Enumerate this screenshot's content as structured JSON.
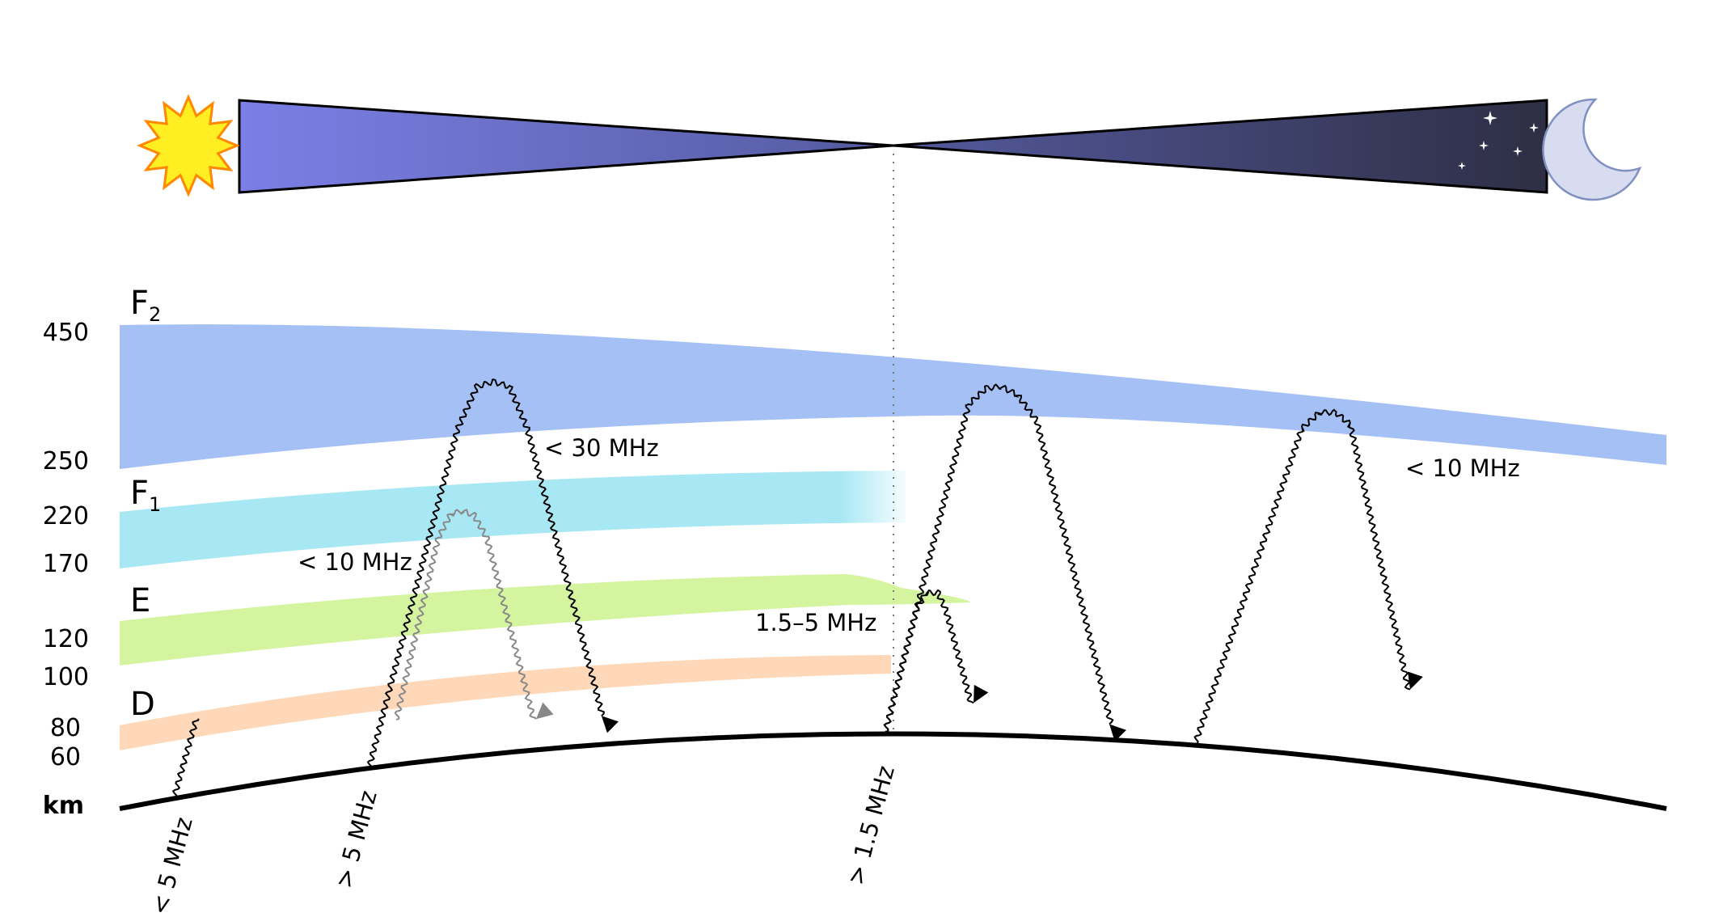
{
  "altitude_axis": {
    "unit": "km",
    "ticks": [
      "450",
      "250",
      "220",
      "170",
      "120",
      "100",
      "80",
      "60"
    ]
  },
  "layers": [
    {
      "name": "F",
      "subscript": "2",
      "color": "#a4c0f4"
    },
    {
      "name": "F",
      "subscript": "1",
      "color": "#a8e8f4"
    },
    {
      "name": "E",
      "subscript": "",
      "color": "#d4f4a0"
    },
    {
      "name": "D",
      "subscript": "",
      "color": "#fed8b8"
    }
  ],
  "frequency_labels": {
    "f2_day": "< 30 MHz",
    "f1_day": "< 10 MHz",
    "e_dusk": "1.5–5 MHz",
    "f2_night": "< 10 MHz",
    "ground_d": "< 5 MHz",
    "ground_f": "> 5 MHz",
    "ground_dusk": "> 1.5 MHz"
  },
  "icons": {
    "day": "sun-icon",
    "night": "moon-icon",
    "stars": "star-icon"
  },
  "colors": {
    "day_sky": "#7b7fe6",
    "night_sky": "#2e2e44",
    "sun_fill": "#ffee22",
    "sun_stroke": "#ff8800",
    "moon_fill": "#d8dcf0",
    "moon_stroke": "#8090c0"
  }
}
